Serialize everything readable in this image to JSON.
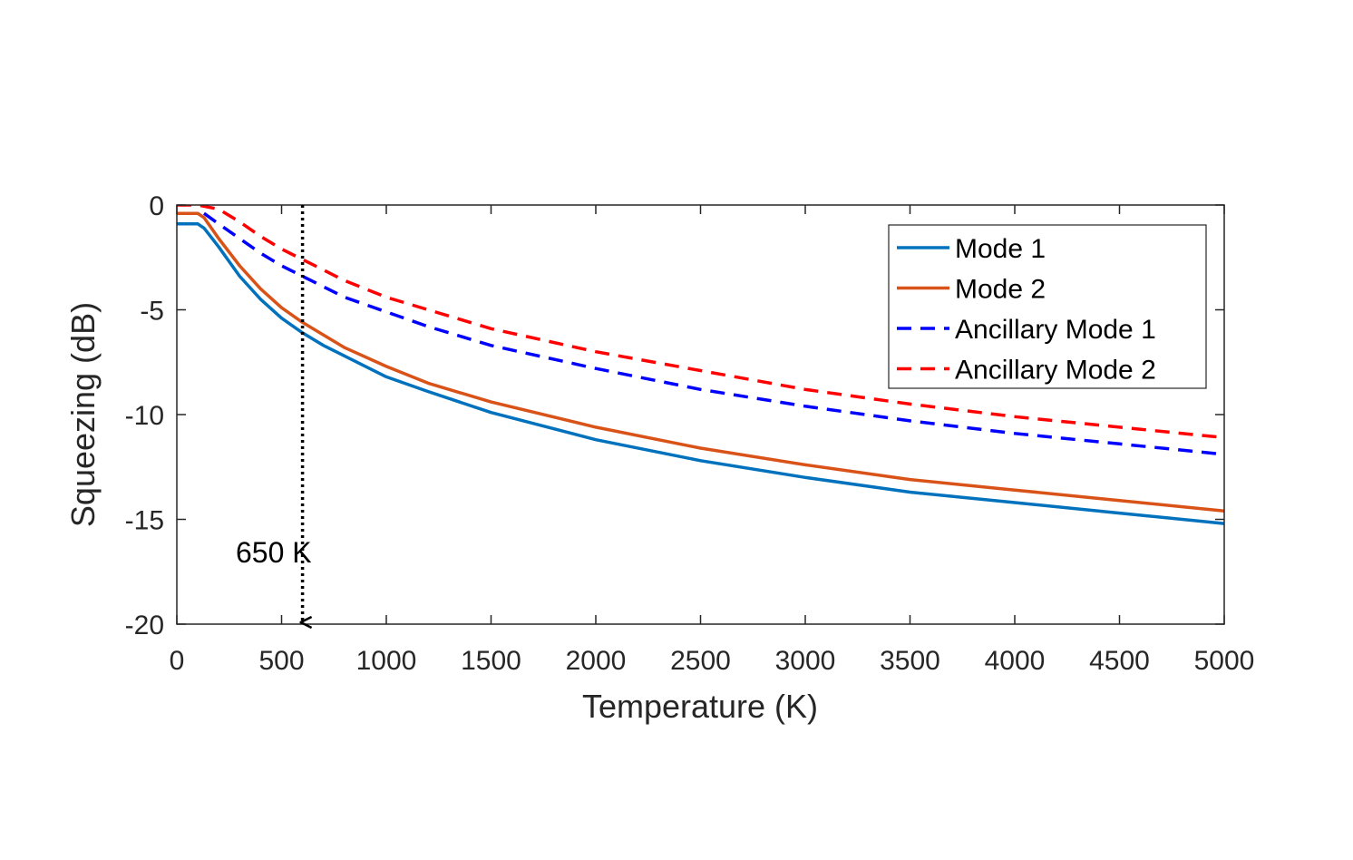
{
  "chart_data": {
    "type": "line",
    "title": "",
    "xlabel": "Temperature (K)",
    "ylabel": "Squeezing (dB)",
    "xlim": [
      0,
      5000
    ],
    "ylim": [
      -20,
      0
    ],
    "xticks": [
      0,
      500,
      1000,
      1500,
      2000,
      2500,
      3000,
      3500,
      4000,
      4500,
      5000
    ],
    "yticks": [
      0,
      -5,
      -10,
      -15,
      -20
    ],
    "xtick_labels": [
      "0",
      "500",
      "1000",
      "1500",
      "2000",
      "2500",
      "3000",
      "3500",
      "4000",
      "4500",
      "5000"
    ],
    "ytick_labels": [
      "0",
      "-5",
      "-10",
      "-15",
      "-20"
    ],
    "grid": false,
    "legend_position": "top-right",
    "series": [
      {
        "name": "Mode 1",
        "style": "solid",
        "color": "#0072BD",
        "x": [
          0,
          100,
          130,
          200,
          300,
          400,
          500,
          600,
          700,
          800,
          1000,
          1200,
          1500,
          2000,
          2500,
          3000,
          3500,
          4000,
          4500,
          5000
        ],
        "y": [
          -0.9,
          -0.9,
          -1.1,
          -2.0,
          -3.4,
          -4.5,
          -5.4,
          -6.1,
          -6.7,
          -7.2,
          -8.2,
          -8.9,
          -9.9,
          -11.2,
          -12.2,
          -13.0,
          -13.7,
          -14.2,
          -14.7,
          -15.2
        ]
      },
      {
        "name": "Mode 2",
        "style": "solid",
        "color": "#D95319",
        "x": [
          0,
          100,
          130,
          200,
          300,
          400,
          500,
          600,
          700,
          800,
          1000,
          1200,
          1500,
          2000,
          2500,
          3000,
          3500,
          4000,
          4500,
          5000
        ],
        "y": [
          -0.4,
          -0.4,
          -0.6,
          -1.6,
          -2.9,
          -4.0,
          -4.9,
          -5.6,
          -6.2,
          -6.8,
          -7.7,
          -8.5,
          -9.4,
          -10.6,
          -11.6,
          -12.4,
          -13.1,
          -13.6,
          -14.1,
          -14.6
        ]
      },
      {
        "name": "Ancillary Mode 1",
        "style": "dashed",
        "color": "#0000FF",
        "x": [
          130,
          200,
          300,
          400,
          500,
          600,
          700,
          800,
          1000,
          1200,
          1500,
          2000,
          2500,
          3000,
          3500,
          4000,
          4500,
          5000
        ],
        "y": [
          -0.4,
          -0.9,
          -1.6,
          -2.3,
          -2.9,
          -3.4,
          -3.9,
          -4.4,
          -5.1,
          -5.8,
          -6.7,
          -7.8,
          -8.8,
          -9.6,
          -10.3,
          -10.9,
          -11.4,
          -11.9
        ]
      },
      {
        "name": "Ancillary Mode 2",
        "style": "dashed",
        "color": "#FF0000",
        "x": [
          0,
          100,
          200,
          300,
          400,
          500,
          600,
          700,
          800,
          1000,
          1200,
          1500,
          2000,
          2500,
          3000,
          3500,
          4000,
          4500,
          5000
        ],
        "y": [
          0.0,
          0.0,
          -0.2,
          -0.8,
          -1.5,
          -2.1,
          -2.6,
          -3.1,
          -3.6,
          -4.4,
          -5.0,
          -5.9,
          -7.0,
          -7.9,
          -8.8,
          -9.5,
          -10.1,
          -10.6,
          -11.1
        ]
      }
    ],
    "annotation": {
      "text": "650 K",
      "x": 600,
      "y_from": 0,
      "y_to": -20,
      "style": "dotted arrow"
    }
  }
}
